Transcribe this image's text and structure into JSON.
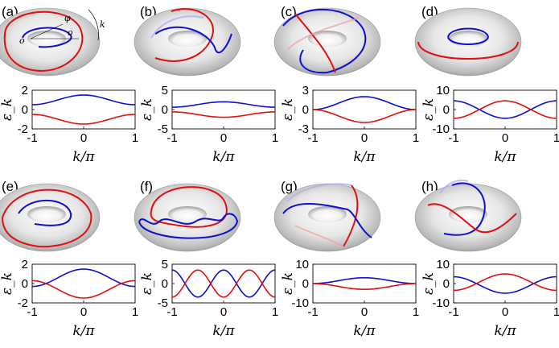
{
  "figure": {
    "xlabel": "k/π",
    "ylabel": "ε_k",
    "annotations": {
      "phi": "φ",
      "o_center": "o",
      "o_tube": "o",
      "k": "k"
    },
    "colors": {
      "band_upper": "#1010d0",
      "band_lower": "#e01010",
      "torus": "#c8c8c8"
    }
  },
  "chart_data": [
    {
      "panel": "(a)",
      "type": "line",
      "x": [
        -1,
        0,
        1
      ],
      "xlim": [
        -1,
        1
      ],
      "xticks": [
        "-1",
        "0",
        "1"
      ],
      "ylim": [
        -2,
        2
      ],
      "yticks": [
        "2",
        "0",
        "-2"
      ],
      "series": [
        {
          "color": "#1010d0",
          "shape": "cos",
          "value_at_0": 1.5,
          "value_at_edge": 0.5
        },
        {
          "color": "#e01010",
          "shape": "cos",
          "value_at_0": -1.5,
          "value_at_edge": -0.5
        }
      ]
    },
    {
      "panel": "(b)",
      "type": "line",
      "x": [
        -1,
        0,
        1
      ],
      "xlim": [
        -1,
        1
      ],
      "xticks": [
        "-1",
        "0",
        "1"
      ],
      "ylim": [
        -5,
        5
      ],
      "yticks": [
        "5",
        "0",
        "-5"
      ],
      "series": [
        {
          "color": "#1010d0",
          "shape": "cos",
          "value_at_0": 2,
          "value_at_edge": 0.6
        },
        {
          "color": "#e01010",
          "shape": "cos",
          "value_at_0": -2,
          "value_at_edge": -0.6
        }
      ]
    },
    {
      "panel": "(c)",
      "type": "line",
      "x": [
        -1,
        0,
        1
      ],
      "xlim": [
        -1,
        1
      ],
      "xticks": [
        "-1",
        "0",
        "1"
      ],
      "ylim": [
        -3,
        3
      ],
      "yticks": [
        "3",
        "0",
        "-3"
      ],
      "series": [
        {
          "color": "#1010d0",
          "shape": "cos",
          "value_at_0": 2,
          "value_at_edge": 0
        },
        {
          "color": "#e01010",
          "shape": "cos",
          "value_at_0": -2,
          "value_at_edge": 0
        }
      ]
    },
    {
      "panel": "(d)",
      "type": "line",
      "x": [
        -1,
        0,
        1
      ],
      "xlim": [
        -1,
        1
      ],
      "xticks": [
        "-1",
        "0",
        "1"
      ],
      "ylim": [
        -10,
        10
      ],
      "yticks": [
        "10",
        "0",
        "-10"
      ],
      "series": [
        {
          "color": "#1010d0",
          "shape": "cos",
          "value_at_0": -4.5,
          "value_at_edge": 4.5
        },
        {
          "color": "#e01010",
          "shape": "cos",
          "value_at_0": 4.5,
          "value_at_edge": -4.5
        }
      ]
    },
    {
      "panel": "(e)",
      "type": "line",
      "x": [
        -1,
        0,
        1
      ],
      "xlim": [
        -1,
        1
      ],
      "xticks": [
        "-1",
        "0",
        "1"
      ],
      "ylim": [
        -2,
        2
      ],
      "yticks": [
        "2",
        "0",
        "-2"
      ],
      "series": [
        {
          "color": "#1010d0",
          "shape": "cos",
          "value_at_0": 1.5,
          "value_at_edge": -0.3
        },
        {
          "color": "#e01010",
          "shape": "cos",
          "value_at_0": -1.5,
          "value_at_edge": 0.3
        }
      ]
    },
    {
      "panel": "(f)",
      "type": "line",
      "x": [
        -1,
        0,
        1
      ],
      "xlim": [
        -1,
        1
      ],
      "xticks": [
        "-1",
        "0",
        "1"
      ],
      "ylim": [
        -5,
        5
      ],
      "yticks": [
        "5",
        "0",
        "-5"
      ],
      "series": [
        {
          "color": "#1010d0",
          "shape": "cos2",
          "value_at_0": 3.5,
          "value_at_edge": 3.5
        },
        {
          "color": "#e01010",
          "shape": "cos2",
          "value_at_0": -3.5,
          "value_at_edge": -3.5
        }
      ]
    },
    {
      "panel": "(g)",
      "type": "line",
      "x": [
        -1,
        0,
        1
      ],
      "xlim": [
        -1,
        1
      ],
      "xticks": [
        "-1",
        "0",
        "1"
      ],
      "ylim": [
        -10,
        10
      ],
      "yticks": [
        "10",
        "0",
        "-10"
      ],
      "series": [
        {
          "color": "#1010d0",
          "shape": "cos",
          "value_at_0": 3,
          "value_at_edge": 0
        },
        {
          "color": "#e01010",
          "shape": "cos",
          "value_at_0": -3,
          "value_at_edge": 0
        }
      ]
    },
    {
      "panel": "(h)",
      "type": "line",
      "x": [
        -1,
        0,
        1
      ],
      "xlim": [
        -1,
        1
      ],
      "xticks": [
        "-1",
        "0",
        "1"
      ],
      "ylim": [
        -10,
        10
      ],
      "yticks": [
        "10",
        "0",
        "-10"
      ],
      "series": [
        {
          "color": "#1010d0",
          "shape": "cos",
          "value_at_0": -5,
          "value_at_edge": 3.5
        },
        {
          "color": "#e01010",
          "shape": "cos",
          "value_at_0": 5,
          "value_at_edge": -3.5
        }
      ]
    }
  ]
}
